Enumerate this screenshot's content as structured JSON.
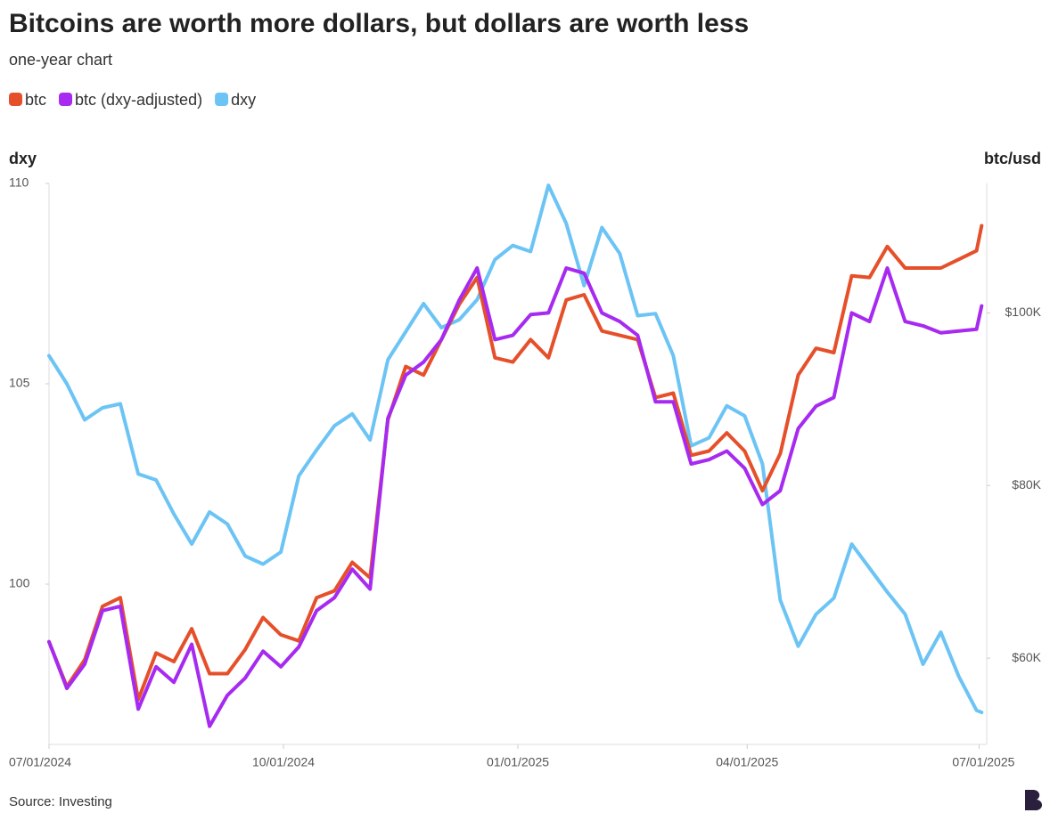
{
  "chart_data": {
    "type": "line",
    "title": "Bitcoins are worth more dollars, but dollars are worth less",
    "subtitle": "one-year chart",
    "source": "Source: Investing",
    "y_label": "dxy",
    "y2_label": "btc/usd",
    "x": [
      "2024-07-01",
      "2024-07-08",
      "2024-07-15",
      "2024-07-22",
      "2024-07-29",
      "2024-08-05",
      "2024-08-12",
      "2024-08-19",
      "2024-08-26",
      "2024-09-02",
      "2024-09-09",
      "2024-09-16",
      "2024-09-23",
      "2024-09-30",
      "2024-10-07",
      "2024-10-14",
      "2024-10-21",
      "2024-10-28",
      "2024-11-04",
      "2024-11-11",
      "2024-11-18",
      "2024-11-25",
      "2024-12-02",
      "2024-12-09",
      "2024-12-16",
      "2024-12-23",
      "2024-12-30",
      "2025-01-06",
      "2025-01-13",
      "2025-01-20",
      "2025-01-27",
      "2025-02-03",
      "2025-02-10",
      "2025-02-17",
      "2025-02-24",
      "2025-03-03",
      "2025-03-10",
      "2025-03-17",
      "2025-03-24",
      "2025-03-31",
      "2025-04-07",
      "2025-04-14",
      "2025-04-21",
      "2025-04-28",
      "2025-05-05",
      "2025-05-12",
      "2025-05-19",
      "2025-05-26",
      "2025-06-02",
      "2025-06-09",
      "2025-06-16",
      "2025-06-23",
      "2025-06-30",
      "2025-07-02"
    ],
    "series": [
      {
        "name": "btc",
        "color": "#e5502b",
        "axis": "y2",
        "values": [
          61900,
          56700,
          59800,
          66000,
          67000,
          55200,
          60600,
          59600,
          63400,
          58200,
          58200,
          61000,
          64700,
          62700,
          62000,
          67000,
          67800,
          71100,
          69300,
          87600,
          93800,
          92800,
          96900,
          101000,
          104100,
          94800,
          94300,
          96900,
          94800,
          101500,
          102100,
          97900,
          97400,
          96900,
          90200,
          90700,
          83500,
          84000,
          86100,
          84000,
          79400,
          83700,
          92800,
          95900,
          95400,
          104300,
          104100,
          107700,
          105200,
          105200,
          105200,
          106200,
          107200,
          110100
        ]
      },
      {
        "name": "btc (dxy-adjusted)",
        "color": "#a62af0",
        "axis": "y2",
        "values": [
          61900,
          56500,
          59300,
          65500,
          66000,
          54100,
          59000,
          57200,
          61600,
          52100,
          55700,
          57700,
          60800,
          59000,
          61300,
          65500,
          67000,
          70300,
          68000,
          87800,
          92800,
          94300,
          96900,
          101500,
          105200,
          96900,
          97400,
          99800,
          100000,
          105200,
          104600,
          100000,
          99000,
          97400,
          89700,
          89700,
          82500,
          83000,
          84000,
          82000,
          77800,
          79400,
          86600,
          89200,
          90200,
          100000,
          99000,
          105200,
          99000,
          98500,
          97700,
          97900,
          98100,
          100800
        ]
      },
      {
        "name": "dxy",
        "color": "#6cc4f5",
        "axis": "y",
        "values": [
          105.7,
          105.0,
          104.1,
          104.4,
          104.5,
          102.75,
          102.6,
          101.75,
          101.0,
          101.8,
          101.5,
          100.7,
          100.5,
          100.8,
          102.7,
          103.35,
          103.95,
          104.25,
          103.6,
          105.6,
          106.3,
          107.0,
          106.4,
          106.6,
          107.1,
          108.1,
          108.45,
          108.3,
          109.95,
          109.0,
          107.45,
          108.9,
          108.25,
          106.7,
          106.75,
          105.7,
          103.45,
          103.65,
          104.45,
          104.2,
          103.0,
          99.6,
          98.45,
          99.25,
          99.65,
          101.0,
          100.4,
          99.8,
          99.25,
          98.0,
          98.8,
          97.7,
          96.85,
          96.8
        ]
      }
    ],
    "xlim": [
      "2024-07-01",
      "2025-07-04"
    ],
    "xticks": [
      {
        "value": "2024-07-01",
        "label": "07/01/2024"
      },
      {
        "value": "2024-10-01",
        "label": "10/01/2024"
      },
      {
        "value": "2025-01-01",
        "label": "01/01/2025"
      },
      {
        "value": "2025-04-01",
        "label": "04/01/2025"
      },
      {
        "value": "2025-07-01",
        "label": "07/01/2025"
      }
    ],
    "ylim": [
      96,
      110
    ],
    "yticks": [
      100,
      105,
      110
    ],
    "y2lim": [
      50000,
      115000
    ],
    "y2ticks": [
      {
        "value": 60000,
        "label": "$60K"
      },
      {
        "value": 80000,
        "label": "$80K"
      },
      {
        "value": 100000,
        "label": "$100K"
      }
    ]
  }
}
